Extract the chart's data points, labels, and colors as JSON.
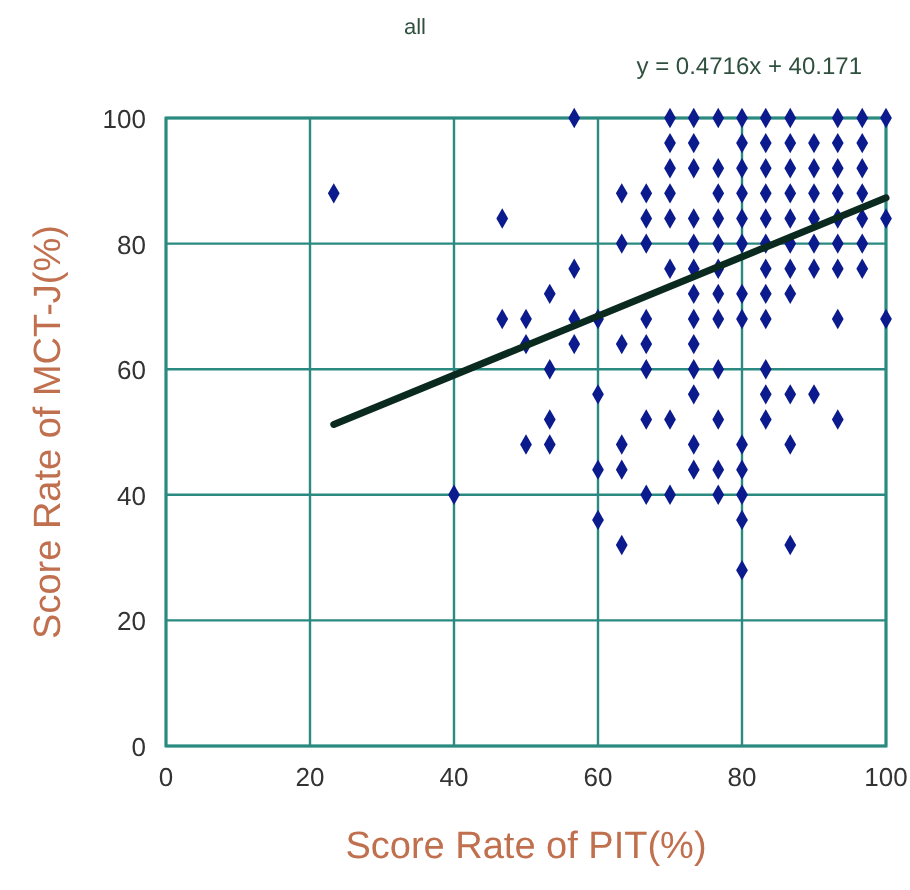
{
  "chart_data": {
    "type": "scatter",
    "title": "all",
    "xlabel": "Score Rate of PIT(%)",
    "ylabel": "Score Rate of MCT-J(%)",
    "annotations": [
      "y = 0.4716x + 40.171"
    ],
    "xlim": [
      0,
      100
    ],
    "ylim": [
      0,
      100
    ],
    "xticks": [
      0,
      20,
      40,
      60,
      80,
      100
    ],
    "yticks": [
      0,
      20,
      40,
      60,
      80,
      100
    ],
    "grid": true,
    "series": [
      {
        "marker": "diamond",
        "color": "#0b1a8c",
        "x": [
          56.7,
          70,
          73.3,
          76.7,
          80,
          83.3,
          86.7,
          93.3,
          96.7,
          100,
          70,
          73.3,
          80,
          83.3,
          86.7,
          90,
          93.3,
          96.7,
          70,
          73.3,
          76.7,
          80,
          83.3,
          86.7,
          90,
          93.3,
          96.7,
          23.3,
          63.3,
          66.7,
          70,
          76.7,
          80,
          83.3,
          86.7,
          90,
          93.3,
          96.7,
          46.7,
          66.7,
          70,
          73.3,
          76.7,
          80,
          83.3,
          86.7,
          90,
          93.3,
          96.7,
          100,
          63.3,
          66.7,
          73.3,
          76.7,
          80,
          83.3,
          86.7,
          90,
          93.3,
          96.7,
          56.7,
          70,
          73.3,
          76.7,
          83.3,
          86.7,
          90,
          93.3,
          96.7,
          53.3,
          73.3,
          76.7,
          80,
          83.3,
          86.7,
          46.7,
          50,
          56.7,
          60,
          66.7,
          73.3,
          76.7,
          80,
          83.3,
          93.3,
          100,
          50,
          56.7,
          63.3,
          66.7,
          73.3,
          53.3,
          66.7,
          73.3,
          76.7,
          83.3,
          60,
          73.3,
          83.3,
          86.7,
          90,
          53.3,
          66.7,
          70,
          76.7,
          83.3,
          93.3,
          50,
          53.3,
          63.3,
          73.3,
          80,
          86.7,
          60,
          63.3,
          73.3,
          76.7,
          80,
          40,
          66.7,
          70,
          76.7,
          80,
          60,
          80,
          63.3,
          86.7,
          80
        ],
        "values": [
          100,
          100,
          100,
          100,
          100,
          100,
          100,
          100,
          100,
          100,
          96,
          96,
          96,
          96,
          96,
          96,
          96,
          96,
          92,
          92,
          92,
          92,
          92,
          92,
          92,
          92,
          92,
          88,
          88,
          88,
          88,
          88,
          88,
          88,
          88,
          88,
          88,
          88,
          84,
          84,
          84,
          84,
          84,
          84,
          84,
          84,
          84,
          84,
          84,
          84,
          80,
          80,
          80,
          80,
          80,
          80,
          80,
          80,
          80,
          80,
          76,
          76,
          76,
          76,
          76,
          76,
          76,
          76,
          76,
          72,
          72,
          72,
          72,
          72,
          72,
          68,
          68,
          68,
          68,
          68,
          68,
          68,
          68,
          68,
          68,
          68,
          64,
          64,
          64,
          64,
          64,
          60,
          60,
          60,
          60,
          60,
          56,
          56,
          56,
          56,
          56,
          52,
          52,
          52,
          52,
          52,
          52,
          48,
          48,
          48,
          48,
          48,
          48,
          44,
          44,
          44,
          44,
          44,
          40,
          40,
          40,
          40,
          40,
          36,
          36,
          32,
          32,
          28
        ]
      },
      {
        "type": "line",
        "color": "#0b2a1f",
        "x": [
          23.3,
          100
        ],
        "values": [
          51.2,
          87.3
        ]
      }
    ]
  }
}
